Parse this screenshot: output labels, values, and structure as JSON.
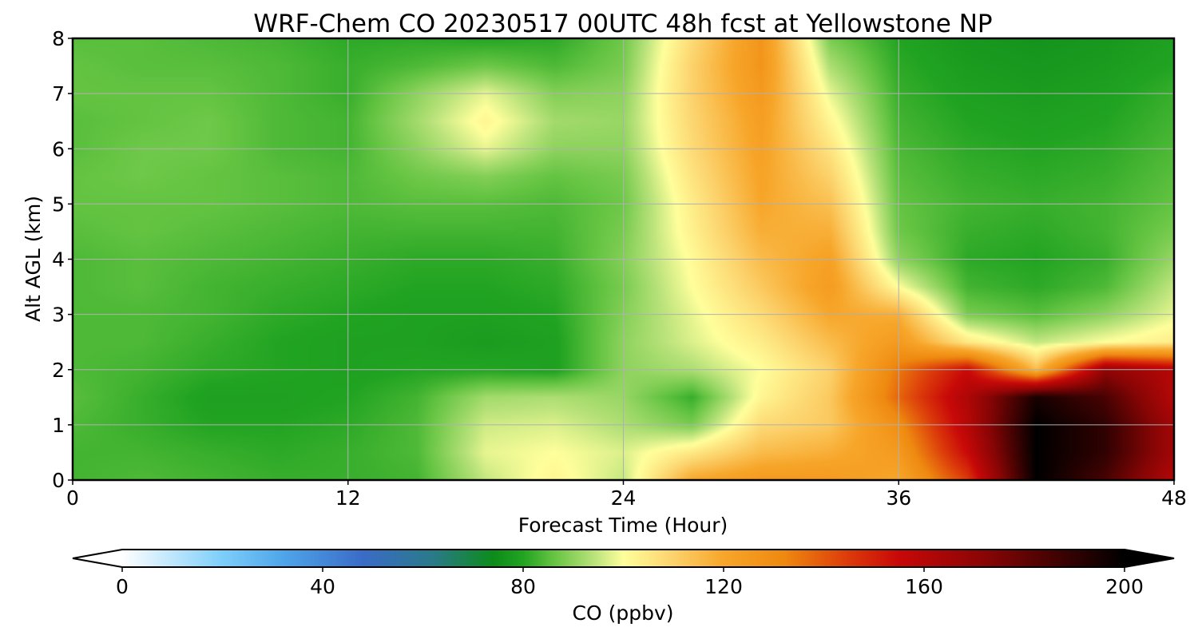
{
  "chart_data": {
    "type": "heatmap",
    "title": "WRF-Chem CO  20230517 00UTC 48h fcst at Yellowstone NP",
    "xlabel": "Forecast Time (Hour)",
    "ylabel": "Alt AGL (km)",
    "xlim": [
      0,
      48
    ],
    "ylim": [
      0,
      8
    ],
    "x_ticks": [
      0,
      12,
      24,
      36,
      48
    ],
    "y_ticks": [
      0,
      1,
      2,
      3,
      4,
      5,
      6,
      7,
      8
    ],
    "grid": true,
    "x_hours": [
      0,
      3,
      6,
      9,
      12,
      15,
      18,
      21,
      24,
      27,
      30,
      33,
      36,
      39,
      42,
      45,
      48
    ],
    "y_km": [
      0,
      0.5,
      1,
      1.5,
      2,
      2.5,
      3,
      3.5,
      4,
      4.5,
      5,
      5.5,
      6,
      6.5,
      7,
      7.5,
      8
    ],
    "z_ppbv": [
      [
        83,
        84,
        83,
        82,
        82,
        83,
        95,
        102,
        95,
        120,
        125,
        125,
        120,
        145,
        200,
        185,
        160
      ],
      [
        83,
        83,
        82,
        81,
        82,
        84,
        98,
        100,
        97,
        105,
        115,
        118,
        125,
        155,
        200,
        190,
        165
      ],
      [
        84,
        82,
        80,
        80,
        81,
        84,
        96,
        97,
        93,
        88,
        108,
        112,
        130,
        160,
        200,
        190,
        165
      ],
      [
        85,
        82,
        79,
        79,
        80,
        83,
        92,
        93,
        91,
        82,
        102,
        112,
        138,
        162,
        195,
        185,
        160
      ],
      [
        84,
        83,
        81,
        80,
        79,
        80,
        80,
        79,
        90,
        93,
        100,
        110,
        135,
        155,
        115,
        170,
        160
      ],
      [
        84,
        84,
        82,
        80,
        79,
        79,
        78,
        79,
        90,
        97,
        104,
        115,
        125,
        105,
        95,
        100,
        104
      ],
      [
        84,
        84,
        83,
        81,
        80,
        79,
        79,
        80,
        89,
        98,
        108,
        120,
        118,
        88,
        85,
        90,
        98
      ],
      [
        84,
        85,
        83,
        82,
        81,
        80,
        80,
        81,
        88,
        100,
        112,
        124,
        100,
        83,
        81,
        84,
        95
      ],
      [
        84,
        85,
        84,
        83,
        82,
        81,
        81,
        82,
        89,
        101,
        115,
        122,
        90,
        81,
        80,
        82,
        91
      ],
      [
        85,
        86,
        85,
        84,
        83,
        83,
        83,
        83,
        88,
        103,
        118,
        118,
        87,
        82,
        81,
        83,
        88
      ],
      [
        86,
        86,
        86,
        85,
        84,
        85,
        85,
        84,
        87,
        104,
        120,
        114,
        86,
        83,
        82,
        83,
        86
      ],
      [
        86,
        87,
        86,
        85,
        84,
        87,
        89,
        86,
        88,
        106,
        121,
        110,
        85,
        82,
        81,
        82,
        85
      ],
      [
        85,
        87,
        87,
        84,
        83,
        90,
        98,
        90,
        90,
        108,
        122,
        106,
        84,
        81,
        80,
        81,
        84
      ],
      [
        85,
        86,
        87,
        84,
        83,
        92,
        102,
        92,
        91,
        109,
        123,
        102,
        83,
        80,
        79,
        80,
        83
      ],
      [
        86,
        86,
        86,
        84,
        82,
        90,
        98,
        89,
        90,
        110,
        125,
        98,
        82,
        79,
        78,
        79,
        82
      ],
      [
        86,
        85,
        85,
        84,
        82,
        84,
        87,
        84,
        88,
        110,
        127,
        93,
        81,
        78,
        77,
        78,
        80
      ],
      [
        85,
        85,
        84,
        83,
        81,
        81,
        80,
        81,
        87,
        108,
        127,
        88,
        80,
        77,
        76,
        77,
        79
      ]
    ],
    "colorbar": {
      "label": "CO  (ppbv)",
      "min": 0,
      "max": 200,
      "ticks": [
        0,
        40,
        80,
        120,
        160,
        200
      ],
      "extend": "both",
      "orientation": "horizontal",
      "stops": [
        {
          "v": 0,
          "c": "#ffffff"
        },
        {
          "v": 20,
          "c": "#7dcffa"
        },
        {
          "v": 32,
          "c": "#4fa6ea"
        },
        {
          "v": 48,
          "c": "#3a6cc8"
        },
        {
          "v": 62,
          "c": "#2a7a8a"
        },
        {
          "v": 74,
          "c": "#0d8c1a"
        },
        {
          "v": 80,
          "c": "#22a422"
        },
        {
          "v": 86,
          "c": "#64c442"
        },
        {
          "v": 94,
          "c": "#b8e27a"
        },
        {
          "v": 100,
          "c": "#ffff9c"
        },
        {
          "v": 110,
          "c": "#fcd26c"
        },
        {
          "v": 120,
          "c": "#f7a62a"
        },
        {
          "v": 132,
          "c": "#ef8a10"
        },
        {
          "v": 145,
          "c": "#dc3a0a"
        },
        {
          "v": 155,
          "c": "#c80808"
        },
        {
          "v": 172,
          "c": "#8a0505"
        },
        {
          "v": 188,
          "c": "#3a0202"
        },
        {
          "v": 200,
          "c": "#000000"
        }
      ]
    }
  }
}
